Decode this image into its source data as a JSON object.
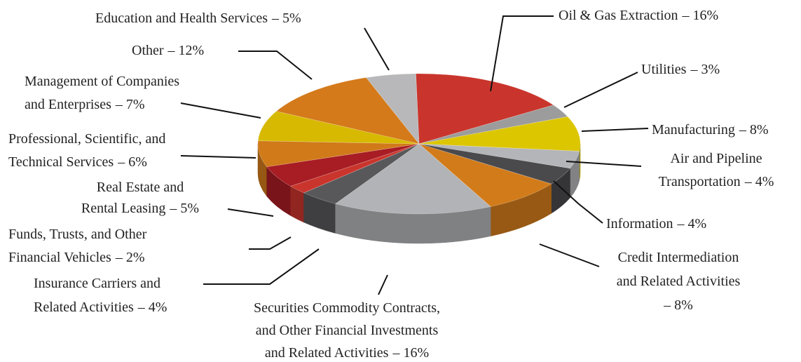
{
  "chart_data": {
    "type": "pie",
    "categories": [
      "Oil & Gas Extraction",
      "Utilities",
      "Manufacturing",
      "Air and Pipeline\nTransportation",
      "Information",
      "Credit Intermediation\nand Related Activities",
      "Securities Commodity Contracts,\nand Other Financial Investments\nand Related Activities",
      "Insurance Carriers and\nRelated Activities",
      "Funds, Trusts, and Other\nFinancial Vehicles",
      "Real Estate and\nRental Leasing",
      "Professional, Scientific, and\nTechnical Services",
      "Management of Companies\nand Enterprises",
      "Other",
      "Education and Health Services"
    ],
    "values": [
      16,
      3,
      8,
      4,
      4,
      8,
      16,
      4,
      2,
      5,
      6,
      7,
      12,
      5
    ],
    "value_labels": [
      "– 16%",
      "– 3%",
      "– 8%",
      "– 4%",
      "– 4%",
      "– 8%",
      "– 16%",
      "– 4%",
      "– 2%",
      "– 5%",
      "– 6%",
      "– 7%",
      "– 12%",
      "– 5%"
    ],
    "colors": [
      "#c9352c",
      "#9c9c9c",
      "#dcc600",
      "#b4b5b8",
      "#4a4a4c",
      "#d27b1a",
      "#b2b3b6",
      "#58585a",
      "#c9352c",
      "#a81c24",
      "#d07a1a",
      "#d6b900",
      "#d47a1a",
      "#b8b8ba"
    ]
  }
}
